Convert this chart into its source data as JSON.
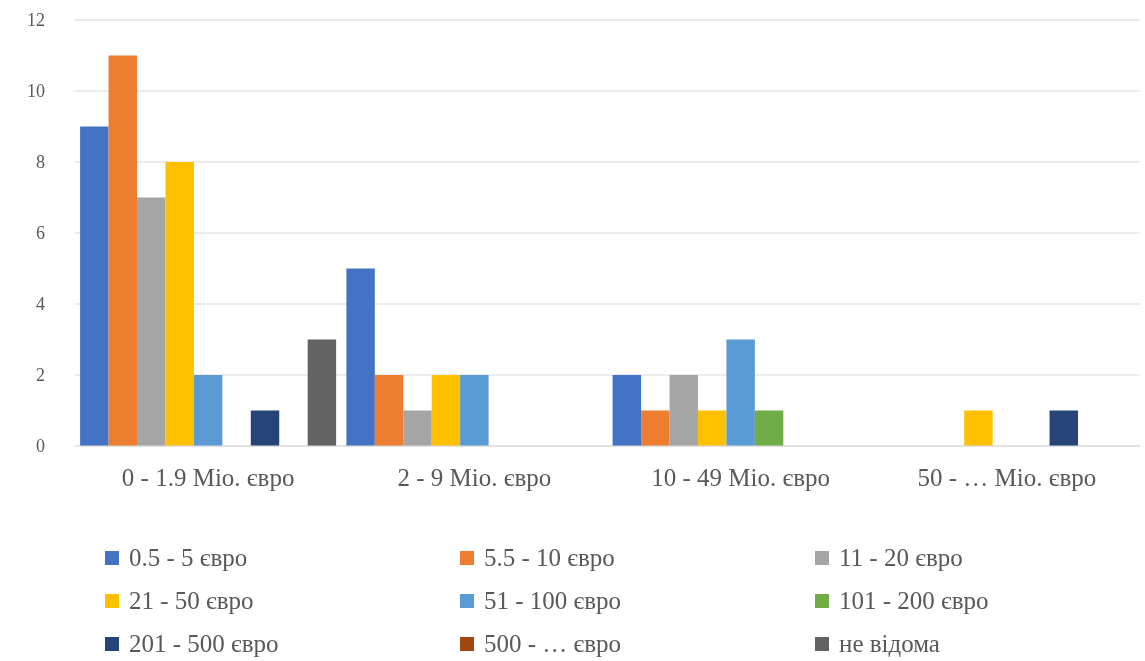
{
  "chart_data": {
    "type": "bar",
    "categories": [
      "0 - 1.9 Mio. євро",
      "2 - 9 Mio. євро",
      "10 - 49 Mio. євро",
      "50 - … Mio. євро"
    ],
    "series": [
      {
        "name": "0.5 - 5 євро",
        "color": "#4472c4",
        "values": [
          9,
          5,
          2,
          0
        ]
      },
      {
        "name": "5.5 - 10 євро",
        "color": "#ed7d31",
        "values": [
          11,
          2,
          1,
          0
        ]
      },
      {
        "name": "11 - 20 євро",
        "color": "#a5a5a5",
        "values": [
          7,
          1,
          2,
          0
        ]
      },
      {
        "name": "21 - 50 євро",
        "color": "#ffc000",
        "values": [
          8,
          2,
          1,
          1
        ]
      },
      {
        "name": "51 - 100 євро",
        "color": "#5b9bd5",
        "values": [
          2,
          2,
          3,
          0
        ]
      },
      {
        "name": "101 - 200 євро",
        "color": "#70ad47",
        "values": [
          0,
          0,
          1,
          0
        ]
      },
      {
        "name": "201 - 500 євро",
        "color": "#264478",
        "values": [
          1,
          0,
          0,
          1
        ]
      },
      {
        "name": "500 - … євро",
        "color": "#9e480e",
        "values": [
          0,
          0,
          0,
          0
        ]
      },
      {
        "name": "не відома",
        "color": "#636363",
        "values": [
          3,
          0,
          0,
          0
        ]
      }
    ],
    "ylim": [
      0,
      12
    ],
    "yticks": [
      0,
      2,
      4,
      6,
      8,
      10,
      12
    ],
    "grid": "y",
    "legend": "bottom"
  }
}
